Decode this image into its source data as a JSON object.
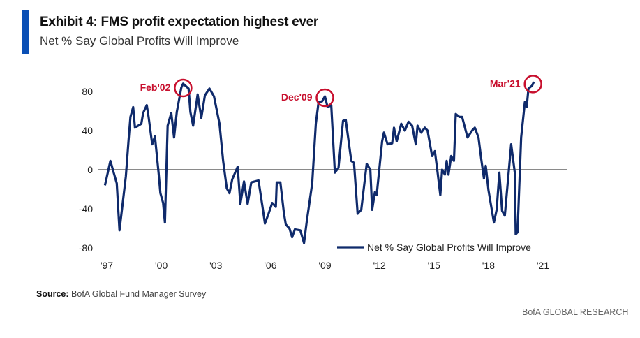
{
  "header": {
    "title": "Exhibit 4: FMS profit expectation highest ever",
    "subtitle": "Net % Say Global Profits Will Improve"
  },
  "footer": {
    "source_label": "Source:",
    "source_text": "BofA Global Fund Manager Survey",
    "brand": "BofA GLOBAL RESEARCH"
  },
  "colors": {
    "accent_bar": "#0a4fb5",
    "series": "#0f2a6b",
    "annotation": "#c8102e",
    "zero_line": "#444444"
  },
  "chart_data": {
    "type": "line",
    "title": "",
    "xlabel": "",
    "ylabel": "",
    "xlim": [
      1997,
      2021
    ],
    "ylim": [
      -80,
      80
    ],
    "x_ticks": [
      1997,
      2000,
      2003,
      2006,
      2009,
      2012,
      2015,
      2018,
      2021
    ],
    "x_tick_labels": [
      "'97",
      "'00",
      "'03",
      "'06",
      "'09",
      "'12",
      "'15",
      "'18",
      "'21"
    ],
    "y_ticks": [
      80,
      40,
      0,
      -40,
      -80
    ],
    "y_tick_labels": [
      "80",
      "40",
      "0",
      "-40",
      "-80"
    ],
    "grid": false,
    "zero_line": true,
    "legend": {
      "placement": "bottom-right",
      "entries": [
        "Net % Say Global Profits Will Improve"
      ]
    },
    "series": [
      {
        "name": "Net % Say Global Profits Will Improve",
        "x": [
          1996.9,
          1997.2,
          1997.35,
          1997.55,
          1997.7,
          1998.05,
          1998.2,
          1998.3,
          1998.45,
          1998.55,
          1998.9,
          1999.0,
          1999.2,
          1999.3,
          1999.5,
          1999.65,
          1999.85,
          1999.95,
          2000.1,
          2000.2,
          2000.35,
          2000.55,
          2000.7,
          2000.85,
          2001.1,
          2001.2,
          2001.5,
          2001.6,
          2001.75,
          2002.0,
          2002.2,
          2002.4,
          2002.65,
          2002.9,
          2003.2,
          2003.4,
          2003.6,
          2003.75,
          2003.9,
          2004.2,
          2004.35,
          2004.55,
          2004.75,
          2004.95,
          2005.35,
          2005.55,
          2005.7,
          2005.9,
          2006.1,
          2006.3,
          2006.35,
          2006.55,
          2006.75,
          2006.85,
          2007.05,
          2007.2,
          2007.35,
          2007.65,
          2007.85,
          2008.0,
          2008.3,
          2008.5,
          2008.65,
          2008.85,
          2009.0,
          2009.15,
          2009.35,
          2009.55,
          2009.75,
          2010.0,
          2010.15,
          2010.45,
          2010.6,
          2010.8,
          2011.0,
          2011.3,
          2011.5,
          2011.6,
          2011.75,
          2011.85,
          2012.15,
          2012.25,
          2012.45,
          2012.7,
          2012.8,
          2012.95,
          2013.2,
          2013.4,
          2013.6,
          2013.8,
          2014.0,
          2014.1,
          2014.3,
          2014.5,
          2014.65,
          2014.9,
          2015.05,
          2015.2,
          2015.35,
          2015.45,
          2015.6,
          2015.7,
          2015.8,
          2015.95,
          2016.1,
          2016.2,
          2016.4,
          2016.55,
          2016.75,
          2016.85,
          2017.1,
          2017.25,
          2017.45,
          2017.6,
          2017.75,
          2017.85,
          2018.0,
          2018.3,
          2018.45,
          2018.6,
          2018.75,
          2018.9,
          2019.25,
          2019.45,
          2019.5,
          2019.6,
          2019.8,
          2020.0,
          2020.1,
          2020.2,
          2020.4,
          2020.5
        ],
        "y": [
          -16,
          9,
          -1,
          -14,
          -62,
          -7,
          31,
          54,
          64,
          43,
          47,
          58,
          66,
          54,
          26,
          34,
          -3,
          -24,
          -34,
          -54,
          45,
          58,
          33,
          59,
          84,
          88,
          83,
          59,
          45,
          77,
          53,
          76,
          83,
          75,
          47,
          9,
          -19,
          -24,
          -10,
          3,
          -35,
          -12,
          -35,
          -13,
          -11,
          -36,
          -55,
          -45,
          -34,
          -38,
          -13,
          -13,
          -45,
          -56,
          -60,
          -69,
          -61,
          -62,
          -75,
          -53,
          -14,
          47,
          69,
          70,
          75,
          64,
          66,
          -3,
          2,
          50,
          51,
          9,
          7,
          -45,
          -41,
          6,
          0,
          -41,
          -23,
          -26,
          29,
          38,
          26,
          27,
          43,
          29,
          47,
          40,
          49,
          45,
          26,
          45,
          38,
          43,
          40,
          14,
          19,
          -3,
          -26,
          0,
          -5,
          9,
          -5,
          14,
          9,
          57,
          54,
          54,
          40,
          33,
          40,
          43,
          33,
          11,
          -9,
          4,
          -21,
          -54,
          -41,
          -3,
          -42,
          -47,
          26,
          -3,
          -66,
          -64,
          33,
          69,
          64,
          83,
          86,
          90
        ]
      }
    ],
    "annotations": [
      {
        "label": "Feb'02",
        "x": 2001.2,
        "y": 85
      },
      {
        "label": "Dec'09",
        "x": 2009.0,
        "y": 75
      },
      {
        "label": "Mar'21",
        "x": 2020.45,
        "y": 89
      }
    ]
  }
}
